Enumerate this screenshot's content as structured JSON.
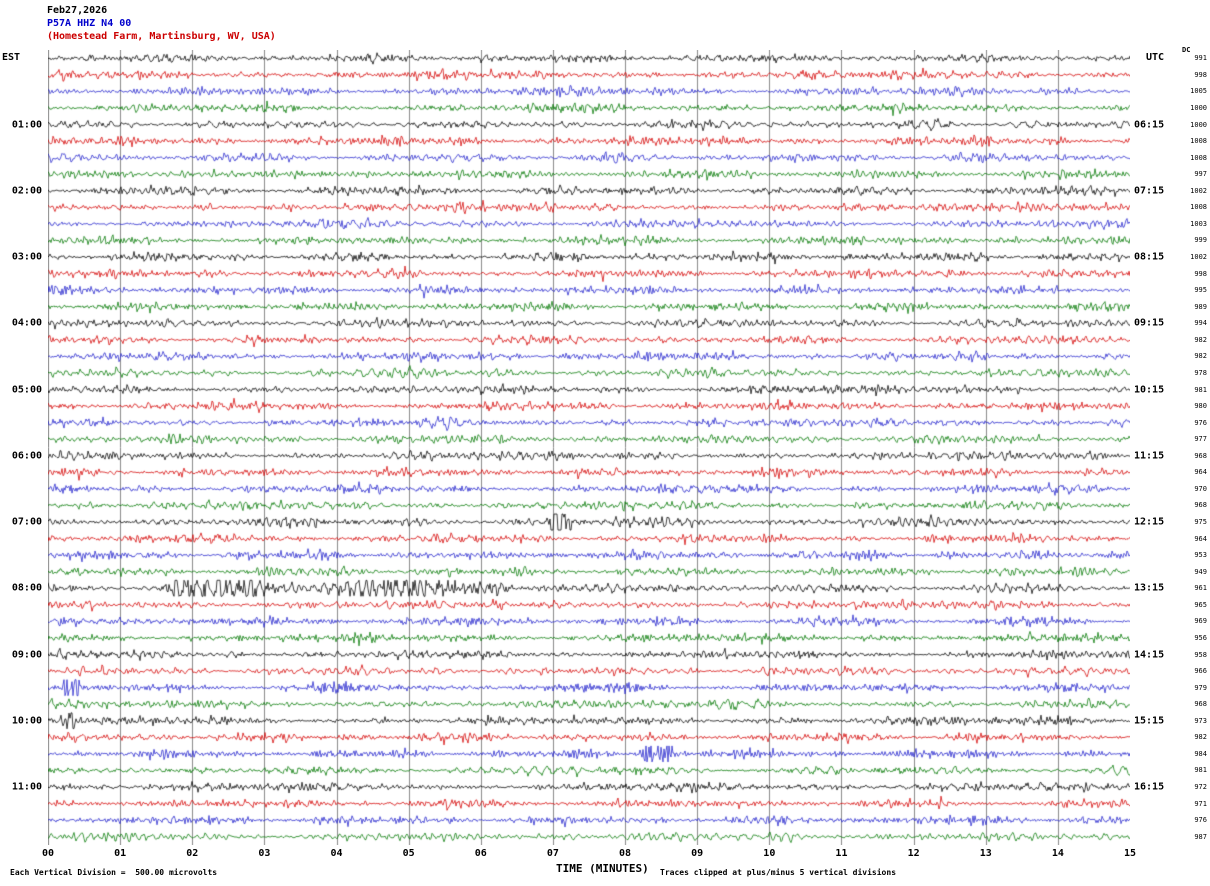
{
  "header": {
    "date": "Feb27,2026",
    "station": "P57A HHZ N4 00",
    "location": "(Homestead Farm, Martinsburg, WV, USA)"
  },
  "axes": {
    "left_label": "EST",
    "right_label": "UTC",
    "dc_label": "DC",
    "x_axis_title": "TIME (MINUTES)",
    "x_ticks": [
      "00",
      "01",
      "02",
      "03",
      "04",
      "05",
      "06",
      "07",
      "08",
      "09",
      "10",
      "11",
      "12",
      "13",
      "14",
      "15"
    ],
    "left_hour_labels": [
      {
        "row": 4,
        "label": "01:00"
      },
      {
        "row": 8,
        "label": "02:00"
      },
      {
        "row": 12,
        "label": "03:00"
      },
      {
        "row": 16,
        "label": "04:00"
      },
      {
        "row": 20,
        "label": "05:00"
      },
      {
        "row": 24,
        "label": "06:00"
      },
      {
        "row": 28,
        "label": "07:00"
      },
      {
        "row": 32,
        "label": "08:00"
      },
      {
        "row": 36,
        "label": "09:00"
      },
      {
        "row": 40,
        "label": "10:00"
      },
      {
        "row": 44,
        "label": "11:00"
      }
    ],
    "right_hour_labels": [
      {
        "row": 4,
        "label": "06:15"
      },
      {
        "row": 8,
        "label": "07:15"
      },
      {
        "row": 12,
        "label": "08:15"
      },
      {
        "row": 16,
        "label": "09:15"
      },
      {
        "row": 20,
        "label": "10:15"
      },
      {
        "row": 24,
        "label": "11:15"
      },
      {
        "row": 28,
        "label": "12:15"
      },
      {
        "row": 32,
        "label": "13:15"
      },
      {
        "row": 36,
        "label": "14:15"
      },
      {
        "row": 40,
        "label": "15:15"
      },
      {
        "row": 44,
        "label": "16:15"
      }
    ]
  },
  "footer": {
    "scale_note": "Each Vertical Division =  500.00 microvolts",
    "clip_note": "Traces clipped at plus/minus 5 vertical divisions"
  },
  "chart_data": {
    "type": "line",
    "subtype": "helicorder-seismogram",
    "title": "P57A HHZ N4 00 (Homestead Farm, Martinsburg, WV, USA) Feb27,2026",
    "rows": 48,
    "minutes_per_row": 15,
    "x_range_minutes": [
      0,
      15
    ],
    "gridlines": "vertical-every-minute",
    "colors_cycle": [
      "#000000",
      "#d40000",
      "#2222cc",
      "#007700"
    ],
    "vertical_division_microvolts": 500.0,
    "clip_divisions": 5,
    "dc_values": [
      991,
      998,
      1005,
      1000,
      1000,
      1008,
      1008,
      997,
      1002,
      1008,
      1003,
      999,
      1002,
      998,
      995,
      989,
      994,
      982,
      982,
      978,
      981,
      980,
      976,
      977,
      968,
      964,
      970,
      968,
      975,
      964,
      953,
      949,
      961,
      965,
      969,
      956,
      958,
      966,
      979,
      968,
      973,
      982,
      984,
      981,
      972,
      971,
      976,
      987
    ],
    "events": [
      {
        "row": 28,
        "start_min": 6.92,
        "end_min": 7.3,
        "peak_min": 7.02,
        "gain": 8,
        "note": "sharp clipped spike at ~07:07 EST"
      },
      {
        "row": 32,
        "start_min": 1.5,
        "end_min": 6.5,
        "peak_min": 2.3,
        "gain": 3.4,
        "note": "extended high-amplitude burst 08:01-08:06 EST"
      },
      {
        "row": 38,
        "start_min": 0.16,
        "end_min": 0.5,
        "peak_min": 0.28,
        "gain": 7,
        "note": "sharp spike near start of 09:30 row"
      },
      {
        "row": 40,
        "start_min": 0.12,
        "end_min": 0.45,
        "peak_min": 0.24,
        "gain": 3.2,
        "note": "small spike near start of 10:00 row"
      },
      {
        "row": 42,
        "start_min": 8.12,
        "end_min": 8.75,
        "peak_min": 8.35,
        "gain": 7,
        "note": "short burst at ~10:38 EST"
      }
    ]
  }
}
